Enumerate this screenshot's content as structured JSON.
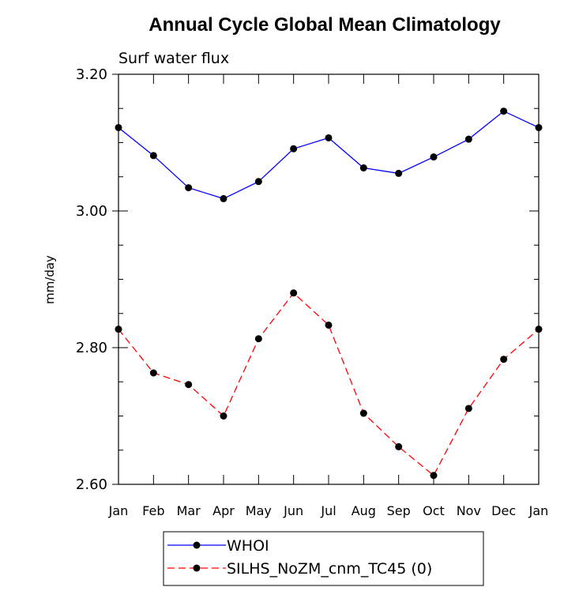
{
  "chart_data": {
    "type": "line",
    "title": "Annual Cycle Global Mean Climatology",
    "subtitle": "Surf water flux",
    "ylabel": "mm/day",
    "xlabel": "",
    "categories": [
      "Jan",
      "Feb",
      "Mar",
      "Apr",
      "May",
      "Jun",
      "Jul",
      "Aug",
      "Sep",
      "Oct",
      "Nov",
      "Dec",
      "Jan"
    ],
    "ylim": [
      2.6,
      3.2
    ],
    "yticks": [
      2.6,
      2.8,
      3.0,
      3.2
    ],
    "ytick_labels": [
      "2.60",
      "2.80",
      "3.00",
      "3.20"
    ],
    "grid": false,
    "legend_position": "bottom",
    "series": [
      {
        "name": "WHOI",
        "color": "#0000ff",
        "line_style": "solid",
        "marker": "filled-circle",
        "values": [
          3.122,
          3.081,
          3.034,
          3.018,
          3.043,
          3.091,
          3.107,
          3.063,
          3.055,
          3.079,
          3.105,
          3.146,
          3.122
        ]
      },
      {
        "name": "SILHS_NoZM_cnm_TC45 (0)",
        "color": "#ff0000",
        "line_style": "dashed",
        "marker": "filled-circle",
        "values": [
          2.827,
          2.763,
          2.746,
          2.7,
          2.813,
          2.88,
          2.833,
          2.704,
          2.655,
          2.613,
          2.711,
          2.783,
          2.827
        ]
      }
    ]
  }
}
